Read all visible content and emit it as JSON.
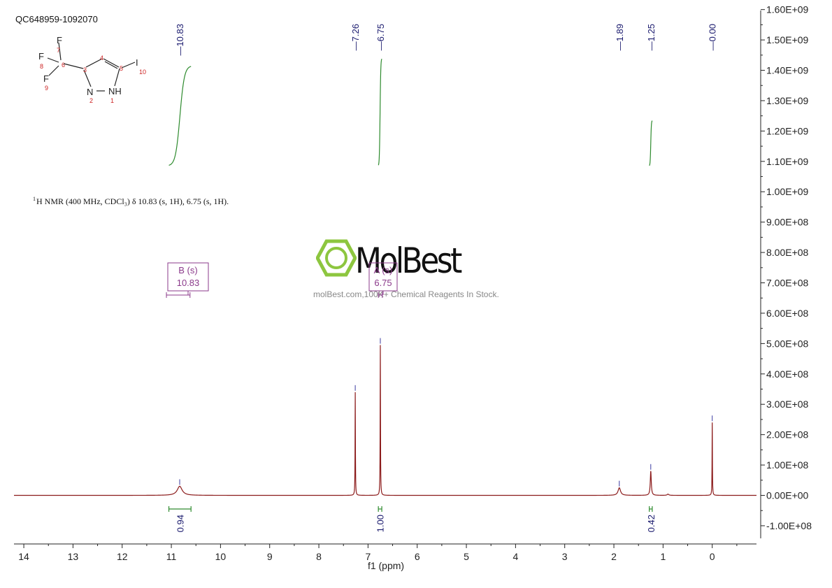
{
  "sample_id": "QC648959-1092070",
  "nmr_description": {
    "sup": "1",
    "text": "H NMR (400 MHz, CDCl₃) δ 10.83 (s, 1H), 6.75 (s, 1H)."
  },
  "watermark": {
    "brand": "MolBest",
    "tagline": "molBest.com,100K+ Chemical Reagents In Stock.",
    "logo_icon": "benzene-ring-icon",
    "logo_color": "#8dc63f"
  },
  "molecule": {
    "atoms": [
      {
        "symbol": "F",
        "number": "7"
      },
      {
        "symbol": "F",
        "number": "8"
      },
      {
        "symbol": "F",
        "number": "9"
      },
      {
        "symbol": "",
        "number": "6"
      },
      {
        "symbol": "",
        "number": "3"
      },
      {
        "symbol": "",
        "number": "4"
      },
      {
        "symbol": "",
        "number": "5"
      },
      {
        "symbol": "I",
        "number": "10"
      },
      {
        "symbol": "N",
        "number": "2"
      },
      {
        "symbol": "NH",
        "number": "1"
      }
    ]
  },
  "colors": {
    "spectrum": "#8b1a1a",
    "integral": "#2e8b2e",
    "peak_label": "#1a1a6e",
    "multiplet": "#8b3a8b",
    "axis": "#222222"
  },
  "chart_data": {
    "type": "line",
    "xlabel": "f1 (ppm)",
    "ylabel": "",
    "xlim": [
      14.2,
      -0.9
    ],
    "ylim": [
      -160000000.0,
      1620000000.0
    ],
    "x_ticks": [
      "14",
      "13",
      "12",
      "11",
      "10",
      "9",
      "8",
      "7",
      "6",
      "5",
      "4",
      "3",
      "2",
      "1",
      "0"
    ],
    "y_ticks": [
      "1.60E+09",
      "1.50E+09",
      "1.40E+09",
      "1.30E+09",
      "1.20E+09",
      "1.10E+09",
      "1.00E+09",
      "9.00E+08",
      "8.00E+08",
      "7.00E+08",
      "6.00E+08",
      "5.00E+08",
      "4.00E+08",
      "3.00E+08",
      "2.00E+08",
      "1.00E+08",
      "0.00E+00",
      "-1.00E+08"
    ],
    "peak_labels": [
      "10.83",
      "7.26",
      "6.75",
      "1.89",
      "1.25",
      "0.00"
    ],
    "peaks": [
      {
        "ppm": 10.83,
        "height": 30000000.0,
        "width": 0.06
      },
      {
        "ppm": 7.26,
        "height": 340000000.0,
        "width": 0.004
      },
      {
        "ppm": 6.75,
        "height": 495000000.0,
        "width": 0.004
      },
      {
        "ppm": 1.89,
        "height": 25000000.0,
        "width": 0.03
      },
      {
        "ppm": 1.25,
        "height": 80000000.0,
        "width": 0.012
      },
      {
        "ppm": 0.9,
        "height": 4000000.0,
        "width": 0.02
      },
      {
        "ppm": 0.0,
        "height": 240000000.0,
        "width": 0.004
      }
    ],
    "integrals": [
      {
        "from": 11.05,
        "to": 10.6,
        "label": "0.94",
        "curve_start": 1085000000.0,
        "curve_end": 1415000000.0
      },
      {
        "from": 6.79,
        "to": 6.72,
        "label": "1.00",
        "curve_start": 1085000000.0,
        "curve_end": 1440000000.0
      },
      {
        "from": 1.28,
        "to": 1.22,
        "label": "0.42",
        "curve_start": 1085000000.0,
        "curve_end": 1235000000.0
      }
    ],
    "multiplets": [
      {
        "type": "B (s)",
        "ppm": "10.83",
        "from": 11.1,
        "to": 10.62
      },
      {
        "type": "A (s)",
        "ppm": "6.75",
        "from": 6.79,
        "to": 6.71
      }
    ]
  }
}
